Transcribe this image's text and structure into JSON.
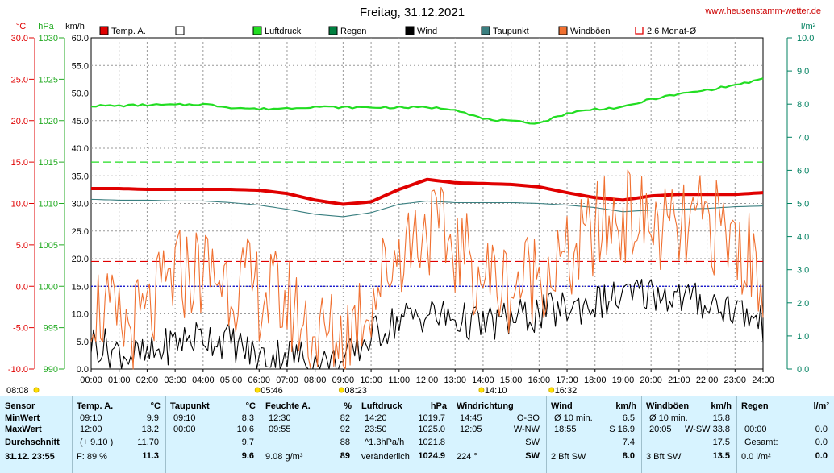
{
  "header": {
    "title": "Freitag, 31.12.2021",
    "website": "www.heusenstamm-wetter.de",
    "unit_temp": "°C",
    "unit_press": "hPa",
    "unit_wind": "km/h",
    "unit_rain": "l/m²"
  },
  "legend": [
    {
      "label": "Temp. A.",
      "color": "#e00000",
      "style": "box"
    },
    {
      "label": "",
      "color": "#ffffff",
      "style": "box"
    },
    {
      "label": "Luftdruck",
      "color": "#22dd22",
      "style": "box"
    },
    {
      "label": "Regen",
      "color": "#008040",
      "style": "box"
    },
    {
      "label": "Wind",
      "color": "#000000",
      "style": "box"
    },
    {
      "label": "Taupunkt",
      "color": "#3a7f80",
      "style": "box"
    },
    {
      "label": "Windböen",
      "color": "#f07030",
      "style": "box"
    },
    {
      "label": "2.6 Monat-Ø",
      "color": "#e00000",
      "style": "bracket"
    }
  ],
  "axes": {
    "temp_ticks": [
      "30.0",
      "25.0",
      "20.0",
      "15.0",
      "10.0",
      "5.0",
      "0.0",
      "-5.0",
      "-10.0"
    ],
    "press_ticks": [
      "1030",
      "1025",
      "1020",
      "1015",
      "1010",
      "1005",
      "1000",
      "995",
      "990"
    ],
    "wind_ticks": [
      "60.0",
      "55.0",
      "50.0",
      "45.0",
      "40.0",
      "35.0",
      "30.0",
      "25.0",
      "20.0",
      "15.0",
      "10.0",
      "5.0",
      "0.0"
    ],
    "rain_ticks": [
      "10.0",
      "9.0",
      "8.0",
      "7.0",
      "6.0",
      "5.0",
      "4.0",
      "3.0",
      "2.0",
      "1.0",
      "0.0"
    ],
    "time_ticks": [
      "00:00",
      "01:00",
      "02:00",
      "03:00",
      "04:00",
      "05:00",
      "06:00",
      "07:00",
      "08:00",
      "09:00",
      "10:00",
      "11:00",
      "12:00",
      "13:00",
      "14:00",
      "15:00",
      "16:00",
      "17:00",
      "18:00",
      "19:00",
      "20:00",
      "21:00",
      "22:00",
      "23:00",
      "24:00"
    ],
    "colors": {
      "temp": "#e00000",
      "press": "#22aa22",
      "rain": "#008060",
      "grid": "#999999"
    }
  },
  "sun_markers": [
    {
      "label": "08:08",
      "hour": 0
    },
    {
      "label": "05:46",
      "hour": 6
    },
    {
      "label": "08:23",
      "hour": 9
    },
    {
      "label": "14:10",
      "hour": 14
    },
    {
      "label": "16:32",
      "hour": 16.5
    }
  ],
  "chart_data": {
    "type": "line",
    "x_unit": "hour",
    "xlim": [
      0,
      24
    ],
    "reference_lines": [
      {
        "name": "2.6 Monat-Ø",
        "axis": "temp",
        "value": 3.0,
        "color": "#e00000"
      },
      {
        "axis": "temp",
        "value": 0.0,
        "color": "#0000cc"
      },
      {
        "axis": "press",
        "value": 1015,
        "color": "#22dd22"
      }
    ],
    "series": [
      {
        "name": "Temp. A.",
        "axis": "temp",
        "ylim": [
          -10,
          30
        ],
        "color": "#e00000",
        "x": [
          0,
          1,
          2,
          3,
          4,
          5,
          6,
          7,
          8,
          9,
          10,
          11,
          12,
          13,
          14,
          15,
          16,
          17,
          18,
          19,
          20,
          21,
          22,
          23,
          24
        ],
        "y": [
          11.8,
          11.8,
          11.7,
          11.7,
          11.7,
          11.7,
          11.6,
          11.2,
          10.4,
          9.9,
          10.2,
          11.7,
          12.9,
          12.5,
          12.4,
          12.3,
          12.0,
          11.3,
          10.7,
          10.4,
          10.9,
          11.1,
          11.1,
          11.1,
          11.3
        ]
      },
      {
        "name": "Taupunkt",
        "axis": "temp",
        "ylim": [
          -10,
          30
        ],
        "color": "#3a7f80",
        "x": [
          0,
          1,
          2,
          3,
          4,
          5,
          6,
          7,
          8,
          9,
          10,
          11,
          12,
          13,
          14,
          15,
          16,
          17,
          18,
          19,
          20,
          21,
          22,
          23,
          24
        ],
        "y": [
          10.5,
          10.4,
          10.4,
          10.3,
          10.3,
          10.1,
          9.8,
          9.3,
          8.7,
          8.4,
          8.9,
          9.9,
          10.3,
          10.1,
          10.1,
          10.1,
          10.0,
          9.8,
          9.5,
          9.0,
          9.2,
          9.3,
          9.4,
          9.6,
          9.7
        ]
      },
      {
        "name": "Luftdruck",
        "axis": "press",
        "ylim": [
          990,
          1030
        ],
        "color": "#22dd22",
        "x": [
          0,
          1,
          2,
          3,
          4,
          5,
          6,
          7,
          8,
          9,
          10,
          11,
          12,
          13,
          14,
          15,
          16,
          17,
          18,
          19,
          20,
          21,
          22,
          23,
          24
        ],
        "y": [
          1021.8,
          1021.8,
          1021.9,
          1021.9,
          1022.0,
          1021.6,
          1021.4,
          1021.5,
          1021.7,
          1021.6,
          1021.6,
          1021.6,
          1021.6,
          1021.4,
          1020.2,
          1019.9,
          1019.7,
          1020.9,
          1021.4,
          1021.6,
          1022.6,
          1023.2,
          1023.7,
          1024.3,
          1025.0
        ]
      },
      {
        "name": "Wind",
        "axis": "wind",
        "ylim": [
          0,
          60
        ],
        "color": "#000000",
        "x": [
          0,
          1,
          2,
          3,
          4,
          5,
          6,
          7,
          8,
          9,
          10,
          11,
          12,
          13,
          14,
          15,
          16,
          17,
          18,
          19,
          20,
          21,
          22,
          23,
          24
        ],
        "y": [
          5,
          3,
          2,
          5,
          6,
          5,
          2,
          3,
          1,
          1,
          6,
          9,
          10,
          9,
          8,
          9,
          10,
          11,
          12,
          13,
          14,
          13,
          12,
          11,
          8
        ]
      },
      {
        "name": "Windböen",
        "axis": "wind",
        "ylim": [
          0,
          60
        ],
        "color": "#f07030",
        "x": [
          0,
          1,
          2,
          3,
          4,
          5,
          6,
          7,
          8,
          9,
          10,
          11,
          12,
          13,
          14,
          15,
          16,
          17,
          18,
          19,
          20,
          21,
          22,
          23,
          24
        ],
        "y": [
          13,
          7,
          9,
          17,
          18,
          16,
          14,
          12,
          6,
          6,
          13,
          22,
          26,
          22,
          17,
          15,
          18,
          19,
          25,
          28,
          26,
          24,
          27,
          23,
          17
        ]
      }
    ]
  },
  "stats_table": {
    "columns": [
      {
        "key": "sensor",
        "header": "Sensor",
        "unit": "",
        "rows": [
          "MinWert",
          "MaxWert",
          "Durchschnitt"
        ],
        "footer": "31.12. 23:55"
      },
      {
        "key": "temp",
        "header": "Temp. A.",
        "unit": "°C",
        "times": [
          "09:10",
          "12:00",
          "(+ 9.10 )"
        ],
        "values": [
          "9.9",
          "13.2",
          "11.70"
        ],
        "footer_left": "F: 89 %",
        "footer_value": "11.3"
      },
      {
        "key": "dew",
        "header": "Taupunkt",
        "unit": "°C",
        "times": [
          "09:10",
          "00:00",
          ""
        ],
        "values": [
          "8.3",
          "10.6",
          "9.7"
        ],
        "footer_left": "",
        "footer_value": "9.6"
      },
      {
        "key": "hum",
        "header": "Feuchte A.",
        "unit": "%",
        "times": [
          "12:30",
          "09:55",
          ""
        ],
        "values": [
          "82",
          "92",
          "88"
        ],
        "footer_left": "9.08 g/m³",
        "footer_value": "89"
      },
      {
        "key": "press",
        "header": "Luftdruck",
        "unit": "hPa",
        "times": [
          "14:20",
          "23:50",
          "^1.3hPa/h"
        ],
        "values": [
          "1019.7",
          "1025.0",
          "1021.8"
        ],
        "footer_left": "veränderlich",
        "footer_value": "1024.9"
      },
      {
        "key": "dir",
        "header": "Windrichtung",
        "unit": "",
        "times": [
          "14:45",
          "12:05",
          ""
        ],
        "values": [
          "O-SO",
          "W-NW",
          "SW"
        ],
        "footer_left": "224 °",
        "footer_value": "SW"
      },
      {
        "key": "wind",
        "header": "Wind",
        "unit": "km/h",
        "times": [
          "Ø 10 min.",
          "18:55",
          ""
        ],
        "values": [
          "6.5",
          "S 16.9",
          "7.4"
        ],
        "footer_left": "2 Bft SW",
        "footer_value": "8.0"
      },
      {
        "key": "gust",
        "header": "Windböen",
        "unit": "km/h",
        "times": [
          "Ø 10 min.",
          "20:05",
          ""
        ],
        "values": [
          "15.8",
          "W-SW 33.8",
          "17.5"
        ],
        "footer_left": "3 Bft SW",
        "footer_value": "13.5"
      },
      {
        "key": "rain",
        "header": "Regen",
        "unit": "l/m²",
        "times": [
          "",
          "00:00",
          "Gesamt:"
        ],
        "values": [
          "",
          "0.0",
          "0.0"
        ],
        "footer_left": "0.0 l/m²",
        "footer_value": "0.0"
      }
    ]
  }
}
